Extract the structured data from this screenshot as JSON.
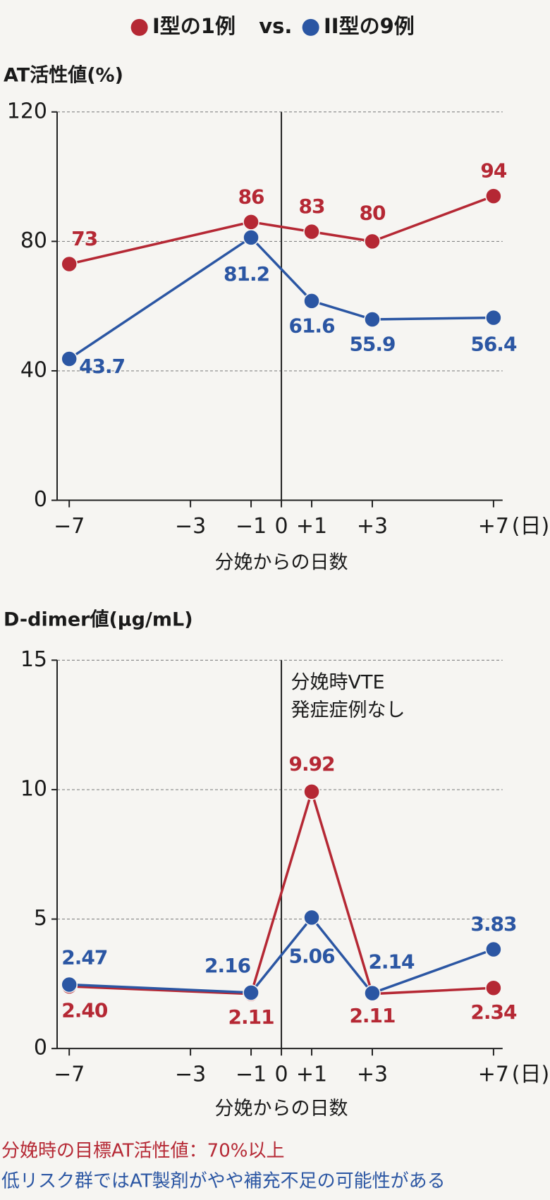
{
  "legend_separator": "vs.",
  "chart_data": [
    {
      "type": "line",
      "y_label": "AT活性値(%)",
      "x_label": "分娩からの日数",
      "x_unit": "(日)",
      "x": [
        -7,
        -1,
        1,
        3,
        7
      ],
      "xlim": [
        -7.4,
        7.3
      ],
      "xticks": [
        {
          "value": -7,
          "label": "−7"
        },
        {
          "value": -3,
          "label": "−3"
        },
        {
          "value": -1,
          "label": "−1"
        },
        0,
        {
          "value": 1,
          "label": "+1"
        },
        {
          "value": 3,
          "label": "+3"
        },
        {
          "value": 7,
          "label": "+7"
        }
      ],
      "ylim": [
        0,
        120
      ],
      "yticks": [
        0,
        40,
        80,
        120
      ],
      "grid": true,
      "vline_x": 0,
      "series": [
        {
          "name": "I型の1例",
          "color": "#b52834",
          "values": [
            73,
            86,
            83,
            80,
            94
          ]
        },
        {
          "name": "II型の9例",
          "color": "#2b56a3",
          "values": [
            43.7,
            81.2,
            61.6,
            55.9,
            56.4
          ]
        }
      ]
    },
    {
      "type": "line",
      "y_label": "D-dimer値(μg/mL)",
      "x_label": "分娩からの日数",
      "x_unit": "(日)",
      "x": [
        -7,
        -1,
        1,
        3,
        7
      ],
      "xlim": [
        -7.4,
        7.3
      ],
      "xticks": [
        {
          "value": -7,
          "label": "−7"
        },
        {
          "value": -3,
          "label": "−3"
        },
        {
          "value": -1,
          "label": "−1"
        },
        0,
        {
          "value": 1,
          "label": "+1"
        },
        {
          "value": 3,
          "label": "+3"
        },
        {
          "value": 7,
          "label": "+7"
        }
      ],
      "ylim": [
        0,
        15
      ],
      "yticks": [
        0,
        5,
        10,
        15
      ],
      "grid": true,
      "vline_x": 0,
      "annotation": [
        "分娩時VTE",
        "発症症例なし"
      ],
      "series": [
        {
          "color": "#b52834",
          "values": [
            2.4,
            2.11,
            9.92,
            2.11,
            2.34
          ],
          "value_labels": [
            "2.40",
            "2.11",
            "9.92",
            "2.11",
            "2.34"
          ]
        },
        {
          "color": "#2b56a3",
          "values": [
            2.47,
            2.16,
            5.06,
            2.14,
            3.83
          ]
        }
      ]
    }
  ],
  "notes": [
    {
      "text": "分娩時の目標AT活性値：70%以上",
      "color": "#b52834"
    },
    {
      "text": "低リスク群ではAT製剤がやや補充不足の可能性がある",
      "color": "#2b56a3"
    }
  ]
}
